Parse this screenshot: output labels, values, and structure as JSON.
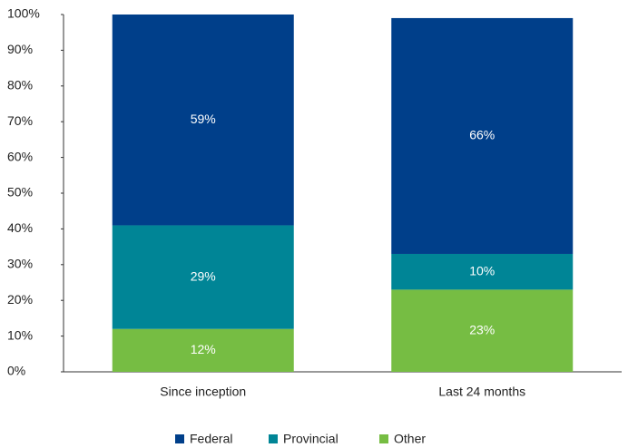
{
  "chart_data": {
    "type": "stacked_bar",
    "categories": [
      "Since inception",
      "Last 24 months"
    ],
    "series": [
      {
        "name": "Other",
        "color": "#76bd43",
        "values": [
          12,
          23
        ],
        "value_labels": [
          "12%",
          "23%"
        ]
      },
      {
        "name": "Provincial",
        "color": "#008596",
        "values": [
          29,
          10
        ],
        "value_labels": [
          "29%",
          "10%"
        ]
      },
      {
        "name": "Federal",
        "color": "#003f8a",
        "values": [
          59,
          66
        ],
        "value_labels": [
          "59%",
          "66%"
        ]
      }
    ],
    "legend_order": [
      "Federal",
      "Provincial",
      "Other"
    ],
    "ylim": [
      0,
      100
    ],
    "yticks": [
      {
        "value": 0,
        "label": "0%"
      },
      {
        "value": 10,
        "label": "10%"
      },
      {
        "value": 20,
        "label": "20%"
      },
      {
        "value": 30,
        "label": "30%"
      },
      {
        "value": 40,
        "label": "40%"
      },
      {
        "value": 50,
        "label": "50%"
      },
      {
        "value": 60,
        "label": "60%"
      },
      {
        "value": 70,
        "label": "70%"
      },
      {
        "value": 80,
        "label": "80%"
      },
      {
        "value": 90,
        "label": "90%"
      },
      {
        "value": 100,
        "label": "100%"
      }
    ],
    "legend": "bottom"
  }
}
